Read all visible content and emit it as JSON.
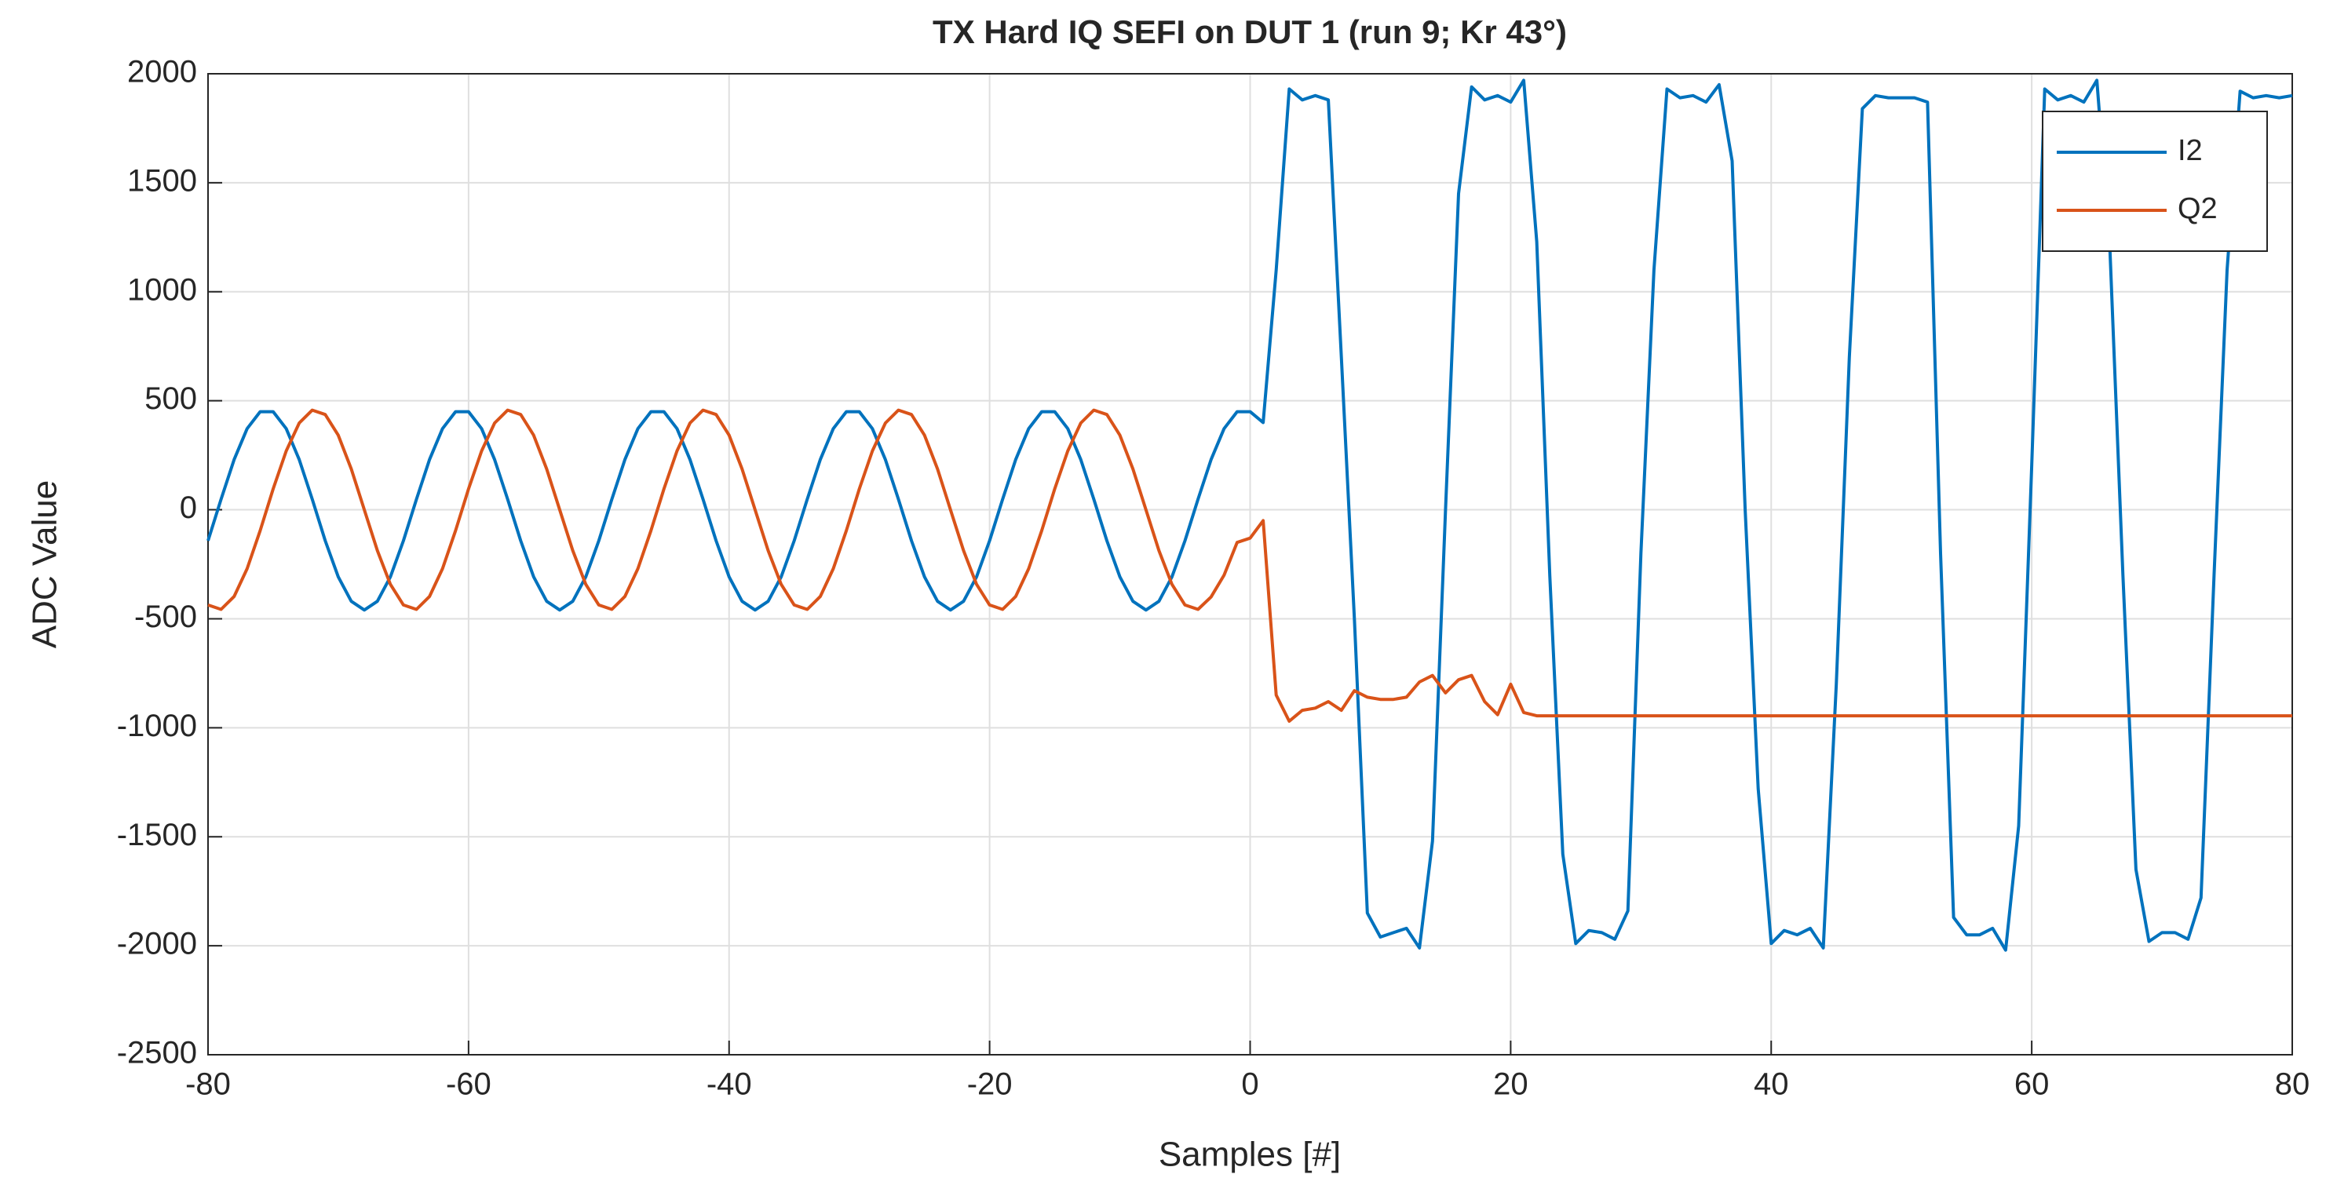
{
  "chart_data": {
    "type": "line",
    "title": "TX Hard IQ SEFI on DUT 1 (run 9; Kr 43°)",
    "x_label": "Samples [#]",
    "y_label": "ADC Value",
    "x": [
      -80,
      -79,
      -78,
      -77,
      -76,
      -75,
      -74,
      -73,
      -72,
      -71,
      -70,
      -69,
      -68,
      -67,
      -66,
      -65,
      -64,
      -63,
      -62,
      -61,
      -60,
      -59,
      -58,
      -57,
      -56,
      -55,
      -54,
      -53,
      -52,
      -51,
      -50,
      -49,
      -48,
      -47,
      -46,
      -45,
      -44,
      -43,
      -42,
      -41,
      -40,
      -39,
      -38,
      -37,
      -36,
      -35,
      -34,
      -33,
      -32,
      -31,
      -30,
      -29,
      -28,
      -27,
      -26,
      -25,
      -24,
      -23,
      -22,
      -21,
      -20,
      -19,
      -18,
      -17,
      -16,
      -15,
      -14,
      -13,
      -12,
      -11,
      -10,
      -9,
      -8,
      -7,
      -6,
      -5,
      -4,
      -3,
      -2,
      -1,
      0,
      1,
      2,
      3,
      4,
      5,
      6,
      7,
      8,
      9,
      10,
      11,
      12,
      13,
      14,
      15,
      16,
      17,
      18,
      19,
      20,
      21,
      22,
      23,
      24,
      25,
      26,
      27,
      28,
      29,
      30,
      31,
      32,
      33,
      34,
      35,
      36,
      37,
      38,
      39,
      40,
      41,
      42,
      43,
      44,
      45,
      46,
      47,
      48,
      49,
      50,
      51,
      52,
      53,
      54,
      55,
      56,
      57,
      58,
      59,
      60,
      61,
      62,
      63,
      64,
      65,
      66,
      67,
      68,
      69,
      70,
      71,
      72,
      73,
      74,
      75,
      76,
      77,
      78,
      79,
      80
    ],
    "series": [
      {
        "name": "I2",
        "color": "#0072BD",
        "values": [
          -142,
          48,
          230,
          372,
          450,
          450,
          372,
          230,
          48,
          -142,
          -308,
          -420,
          -460,
          -420,
          -308,
          -142,
          48,
          230,
          372,
          450,
          450,
          372,
          230,
          48,
          -142,
          -308,
          -420,
          -460,
          -420,
          -308,
          -142,
          48,
          230,
          372,
          450,
          450,
          372,
          230,
          48,
          -142,
          -308,
          -420,
          -460,
          -420,
          -308,
          -142,
          48,
          230,
          372,
          450,
          450,
          372,
          230,
          48,
          -142,
          -308,
          -420,
          -460,
          -420,
          -308,
          -142,
          48,
          230,
          372,
          450,
          450,
          372,
          230,
          48,
          -142,
          -308,
          -420,
          -460,
          -420,
          -308,
          -142,
          48,
          230,
          372,
          450,
          450,
          400,
          1100,
          1930,
          1880,
          1900,
          1880,
          700,
          -500,
          -1850,
          -1960,
          -1940,
          -1920,
          -2010,
          -1520,
          0,
          1450,
          1940,
          1880,
          1900,
          1870,
          1970,
          1230,
          -300,
          -1580,
          -1990,
          -1930,
          -1940,
          -1970,
          -1840,
          -200,
          1100,
          1930,
          1890,
          1900,
          1870,
          1950,
          1600,
          0,
          -1280,
          -1990,
          -1930,
          -1950,
          -1920,
          -2010,
          -800,
          700,
          1840,
          1900,
          1890,
          1890,
          1890,
          1870,
          -200,
          -1870,
          -1950,
          -1950,
          -1920,
          -2020,
          -1450,
          200,
          1930,
          1880,
          1900,
          1870,
          1970,
          1200,
          -300,
          -1650,
          -1980,
          -1940,
          -1940,
          -1970,
          -1780,
          -300,
          1100,
          1920,
          1890,
          1900,
          1890,
          1900
        ]
      },
      {
        "name": "Q2",
        "color": "#D95319",
        "values": [
          -437,
          -457,
          -398,
          -270,
          -96,
          96,
          270,
          398,
          457,
          437,
          342,
          187,
          0,
          -187,
          -342,
          -437,
          -457,
          -398,
          -270,
          -96,
          96,
          270,
          398,
          457,
          437,
          342,
          187,
          0,
          -187,
          -342,
          -437,
          -457,
          -398,
          -270,
          -96,
          96,
          270,
          398,
          457,
          437,
          342,
          187,
          0,
          -187,
          -342,
          -437,
          -457,
          -398,
          -270,
          -96,
          96,
          270,
          398,
          457,
          437,
          342,
          187,
          0,
          -187,
          -342,
          -437,
          -457,
          -398,
          -270,
          -96,
          96,
          270,
          398,
          457,
          437,
          342,
          187,
          0,
          -187,
          -342,
          -437,
          -457,
          -400,
          -300,
          -150,
          -130,
          -50,
          -850,
          -970,
          -920,
          -910,
          -880,
          -920,
          -830,
          -860,
          -870,
          -870,
          -860,
          -790,
          -760,
          -840,
          -780,
          -760,
          -880,
          -940,
          -800,
          -930,
          -945,
          -945,
          -945,
          -945,
          -945,
          -945,
          -945,
          -945,
          -945,
          -945,
          -945,
          -945,
          -945,
          -945,
          -945,
          -945,
          -945,
          -945,
          -945,
          -945,
          -945,
          -945,
          -945,
          -945,
          -945,
          -945,
          -945,
          -945,
          -945,
          -945,
          -945,
          -945,
          -945,
          -945,
          -945,
          -945,
          -945,
          -945,
          -945,
          -945,
          -945,
          -945,
          -945,
          -945,
          -945,
          -945,
          -945,
          -945,
          -945,
          -945,
          -945,
          -945,
          -945,
          -945,
          -945,
          -945,
          -945,
          -945,
          -945
        ]
      }
    ],
    "xlim": [
      -80,
      80
    ],
    "xticks": [
      -80,
      -60,
      -40,
      -20,
      0,
      20,
      40,
      60,
      80
    ],
    "ylim": [
      -2500,
      2000
    ],
    "yticks": [
      -2500,
      -2000,
      -1500,
      -1000,
      -500,
      0,
      500,
      1000,
      1500,
      2000
    ],
    "grid": true,
    "legend": "top-right"
  }
}
